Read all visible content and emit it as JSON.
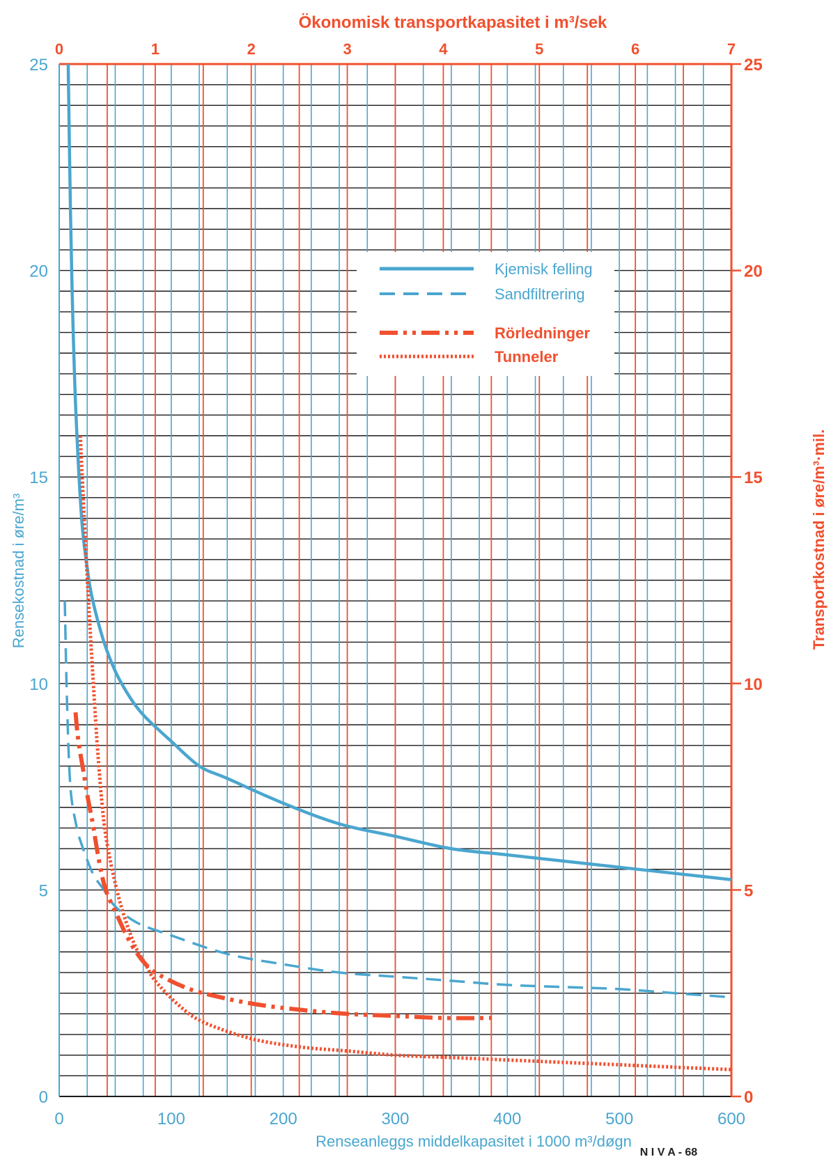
{
  "colors": {
    "blue": "#4aa6cf",
    "red": "#f0502f",
    "grid_black": "#1a1a1a",
    "background": "#ffffff"
  },
  "chart_data": {
    "type": "line",
    "grid": true,
    "legend_position": "center-right, inside plot",
    "title_top": "Ökonomisk  transportkapasitet  i  m³/sek",
    "xlabel": "Renseanleggs  middelkapasitet  i  1000 m³/døgn",
    "ylabel_left": "Rensekostnad  i  øre/m³",
    "ylabel_right": "Transportkostnad  i  øre/m³·mil.",
    "footer": "N I V A - 68",
    "x_bottom": {
      "range": [
        0,
        600
      ],
      "ticks": [
        0,
        100,
        200,
        300,
        400,
        500,
        600
      ],
      "color": "blue",
      "unit": "1000 m³/døgn"
    },
    "x_top": {
      "range": [
        0,
        7
      ],
      "ticks": [
        0,
        1,
        2,
        3,
        4,
        5,
        6,
        7
      ],
      "color": "red",
      "unit": "m³/sek"
    },
    "y_left": {
      "range": [
        0,
        25
      ],
      "ticks": [
        0,
        5,
        10,
        15,
        20,
        25
      ],
      "color": "blue",
      "unit": "øre/m³"
    },
    "y_right": {
      "range": [
        0,
        25
      ],
      "ticks": [
        0,
        5,
        10,
        15,
        20,
        25
      ],
      "color": "red",
      "unit": "øre/m³·mil."
    },
    "legend": [
      {
        "label": "Kjemisk  felling",
        "style": "solid",
        "color": "blue"
      },
      {
        "label": "Sandfiltrering",
        "style": "dashed",
        "color": "blue"
      },
      {
        "label": "Rörledninger",
        "style": "dashdot",
        "color": "red"
      },
      {
        "label": "Tunneler",
        "style": "dotted",
        "color": "red"
      }
    ],
    "series": [
      {
        "name": "Kjemisk  felling",
        "axis": "bottom-left",
        "x": [
          8,
          10,
          12,
          15,
          20,
          25,
          30,
          40,
          50,
          60,
          70,
          80,
          100,
          125,
          150,
          200,
          250,
          300,
          350,
          400,
          450,
          500,
          550,
          600
        ],
        "y": [
          25,
          21.5,
          19,
          16.5,
          14,
          12.8,
          12,
          11,
          10.3,
          9.8,
          9.4,
          9.1,
          8.6,
          8.0,
          7.7,
          7.1,
          6.6,
          6.3,
          6.0,
          5.85,
          5.7,
          5.55,
          5.4,
          5.25
        ]
      },
      {
        "name": "Sandfiltrering",
        "axis": "bottom-left",
        "x": [
          5,
          7,
          10,
          15,
          20,
          30,
          40,
          50,
          70,
          100,
          150,
          200,
          250,
          300,
          350,
          400,
          450,
          500,
          550,
          600
        ],
        "y": [
          12,
          9.5,
          7.5,
          6.6,
          6.1,
          5.4,
          5.0,
          4.6,
          4.2,
          3.9,
          3.45,
          3.2,
          3.0,
          2.9,
          2.8,
          2.7,
          2.65,
          2.6,
          2.5,
          2.4
        ]
      },
      {
        "name": "Rörledninger",
        "axis": "top-right",
        "x": [
          0.17,
          0.2,
          0.25,
          0.3,
          0.35,
          0.4,
          0.45,
          0.5,
          0.6,
          0.7,
          0.8,
          0.9,
          1.0,
          1.25,
          1.5,
          2.0,
          2.5,
          3.0,
          3.5,
          4.0,
          4.5
        ],
        "y": [
          9.3,
          8.6,
          7.9,
          7.2,
          6.6,
          5.9,
          5.3,
          4.9,
          4.4,
          3.9,
          3.5,
          3.2,
          3.0,
          2.7,
          2.5,
          2.25,
          2.1,
          2.0,
          1.95,
          1.9,
          1.9
        ]
      },
      {
        "name": "Tunneler",
        "axis": "top-right",
        "x": [
          0.22,
          0.25,
          0.3,
          0.35,
          0.4,
          0.45,
          0.5,
          0.6,
          0.7,
          0.8,
          0.9,
          1.0,
          1.25,
          1.5,
          2.0,
          2.5,
          3.0,
          3.5,
          4.0,
          4.5,
          5.0,
          5.5,
          6.0,
          6.5,
          7.0
        ],
        "y": [
          16,
          14.5,
          12.2,
          10.2,
          8.4,
          7.0,
          6.1,
          5.0,
          4.2,
          3.6,
          3.2,
          2.8,
          2.2,
          1.8,
          1.4,
          1.2,
          1.1,
          1.0,
          0.95,
          0.9,
          0.85,
          0.8,
          0.75,
          0.7,
          0.65
        ]
      }
    ]
  }
}
